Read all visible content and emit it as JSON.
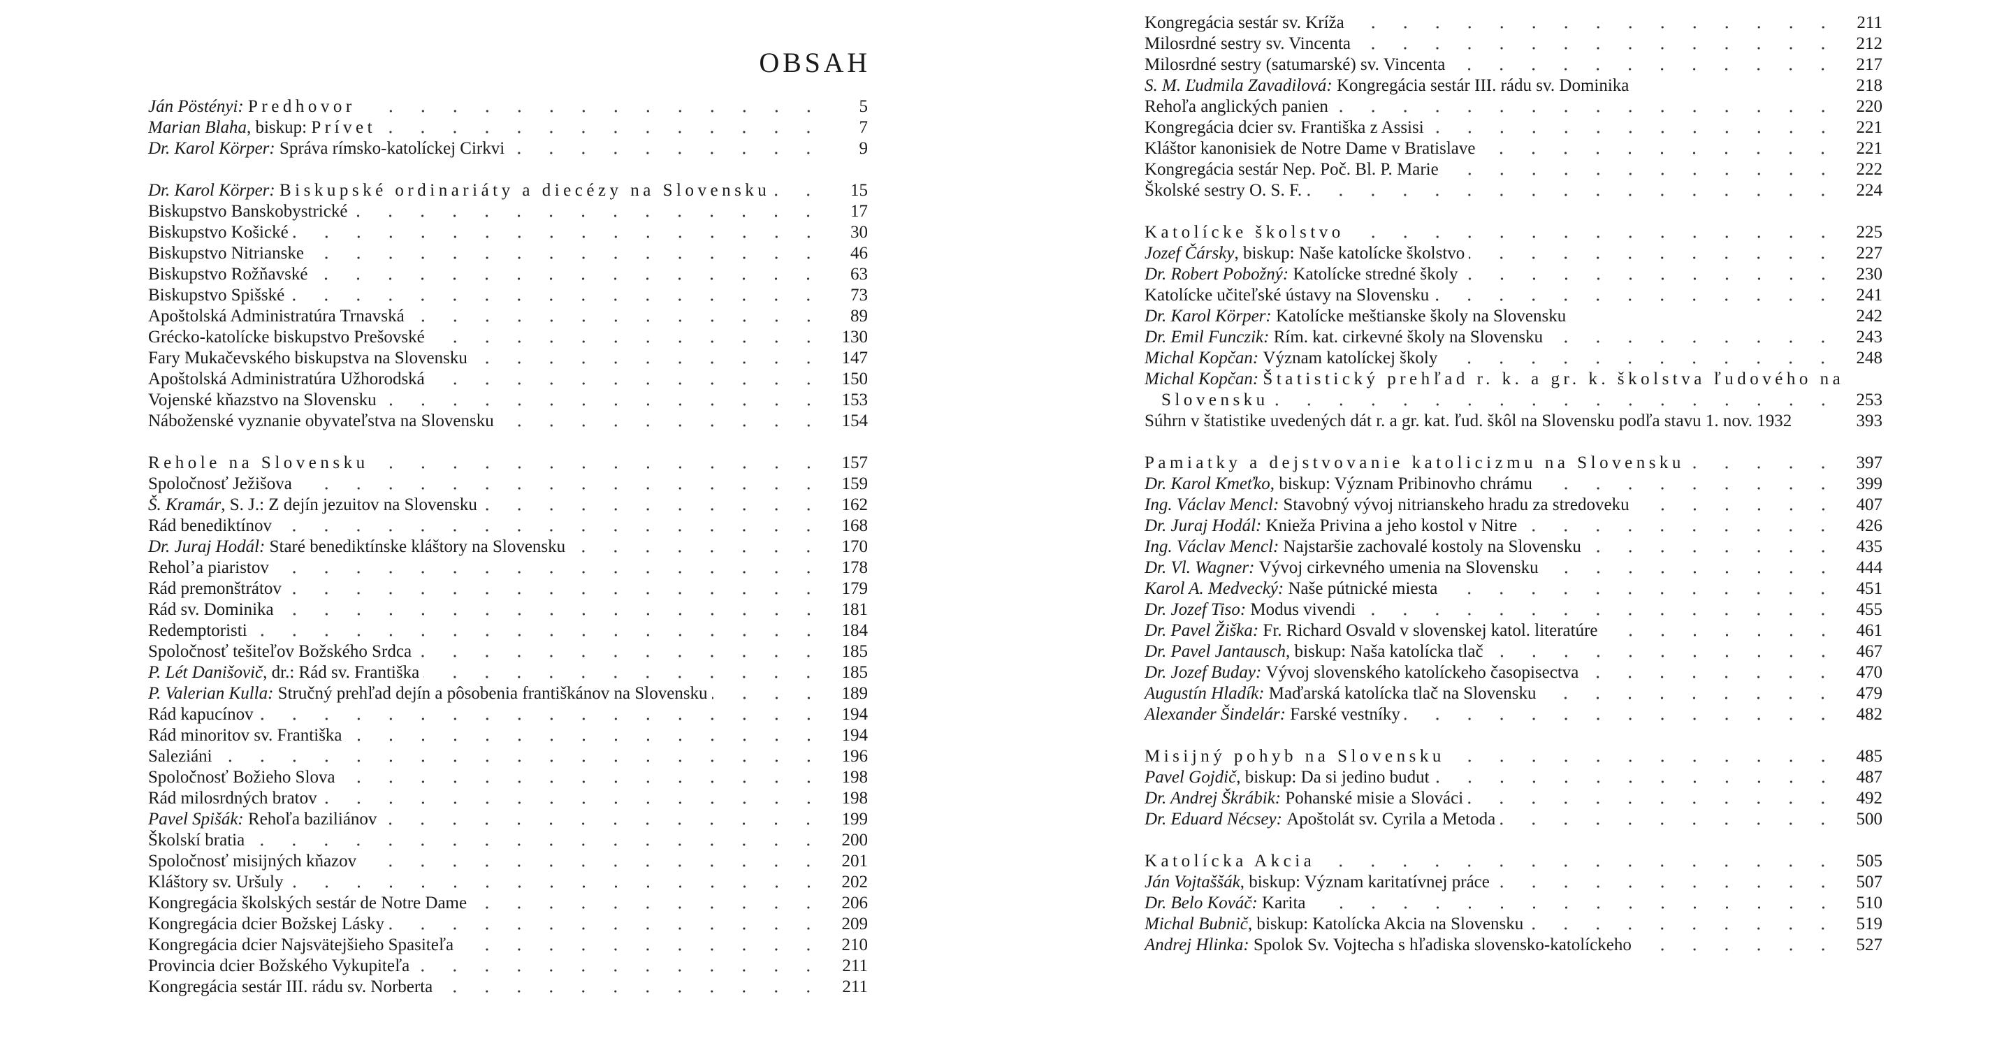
{
  "left_page": {
    "title": "OBSAH",
    "entries": [
      {
        "author": "Ján Pöstényi: ",
        "spaced": "Predhovor",
        "page": "5"
      },
      {
        "author": "Marian Blaha",
        "text": ", biskup: ",
        "spaced": "Prívet",
        "page": "7"
      },
      {
        "author": "Dr. Karol Körper: ",
        "text": "Správa rímsko-katolíckej Cirkvi",
        "page": "9"
      },
      {
        "gap": true
      },
      {
        "author": "Dr. Karol Körper: ",
        "spaced": "Biskupské ordinariáty a diecézy na Slovensku",
        "page": "15"
      },
      {
        "text": "Biskupstvo Banskobystrické",
        "page": "17"
      },
      {
        "text": "Biskupstvo Košické",
        "page": "30"
      },
      {
        "text": "Biskupstvo Nitrianske",
        "page": "46"
      },
      {
        "text": "Biskupstvo Rožňavské",
        "page": "63"
      },
      {
        "text": "Biskupstvo Spišské",
        "page": "73"
      },
      {
        "text": "Apoštolská Administratúra Trnavská",
        "page": "89"
      },
      {
        "text": "Grécko-katolícke biskupstvo Prešovské",
        "page": "130"
      },
      {
        "text": "Fary Mukačevského biskupstva na Slovensku",
        "page": "147"
      },
      {
        "text": "Apoštolská Administratúra Užhorodská",
        "page": "150"
      },
      {
        "text": "Vojenské kňazstvo na Slovensku",
        "page": "153"
      },
      {
        "text": "Náboženské vyznanie obyvateľstva na Slovensku",
        "page": "154"
      },
      {
        "gap": true
      },
      {
        "spaced": "Rehole na Slovensku",
        "page": "157"
      },
      {
        "text": "Spoločnosť Ježišova",
        "page": "159"
      },
      {
        "author": "Š. Kramár",
        "text": ", S. J.: Z dejín jezuitov na Slovensku",
        "page": "162"
      },
      {
        "text": "Rád benediktínov",
        "page": "168"
      },
      {
        "author": "Dr. Juraj Hodál: ",
        "text": "Staré benediktínske kláštory na Slovensku",
        "page": "170"
      },
      {
        "text": "Reholʼa piaristov",
        "page": "178"
      },
      {
        "text": "Rád premonštrátov",
        "page": "179"
      },
      {
        "text": "Rád sv. Dominika",
        "page": "181"
      },
      {
        "text": "Redemptoristi",
        "page": "184"
      },
      {
        "text": "Spoločnosť tešiteľov Božského Srdca",
        "page": "185"
      },
      {
        "author": "P. Lét Danišovič",
        "text": ", dr.: Rád sv. Františka",
        "page": "185"
      },
      {
        "author": "P. Valerian Kulla: ",
        "text": "Stručný prehľad dejín a pôsobenia františkánov na Slovensku",
        "page": "189"
      },
      {
        "text": "Rád kapucínov",
        "page": "194"
      },
      {
        "text": "Rád minoritov sv. Františka",
        "page": "194"
      },
      {
        "text": "Saleziáni",
        "page": "196"
      },
      {
        "text": "Spoločnosť Božieho Slova",
        "page": "198"
      },
      {
        "text": "Rád milosrdných bratov",
        "page": "198"
      },
      {
        "author": "Pavel Spišák: ",
        "text": "Rehoľa baziliánov",
        "page": "199"
      },
      {
        "text": "Školskí bratia",
        "page": "200"
      },
      {
        "text": "Spoločnosť misijných kňazov",
        "page": "201"
      },
      {
        "text": "Kláštory sv. Uršuly",
        "page": "202"
      },
      {
        "text": "Kongregácia školských sestár de Notre Dame",
        "page": "206"
      },
      {
        "text": "Kongregácia dcier Božskej Lásky",
        "page": "209"
      },
      {
        "text": "Kongregácia dcier Najsvätejšieho Spasiteľa",
        "page": "210"
      },
      {
        "text": "Provincia dcier Božského Vykupiteľa",
        "page": "211"
      },
      {
        "text": "Kongregácia sestár III. rádu sv. Norberta",
        "page": "211"
      }
    ]
  },
  "right_page": {
    "entries": [
      {
        "text": "Kongregácia sestár sv. Kríža",
        "page": "211"
      },
      {
        "text": "Milosrdné sestry sv. Vincenta",
        "page": "212"
      },
      {
        "text": "Milosrdné sestry (satumarské) sv. Vincenta",
        "page": "217"
      },
      {
        "author": "S. M. Ľudmila Zavadilová: ",
        "text": "Kongregácia sestár III. rádu sv. Dominika",
        "page": "218",
        "noleader": true
      },
      {
        "text": "Rehoľa anglických panien",
        "page": "220"
      },
      {
        "text": "Kongregácia dcier sv. Františka z Assisi",
        "page": "221"
      },
      {
        "text": "Kláštor kanonisiek de Notre Dame v Bratislave",
        "page": "221"
      },
      {
        "text": "Kongregácia sestár Nep. Poč. Bl. P. Marie",
        "page": "222"
      },
      {
        "text": "Školské sestry O. S. F.",
        "page": "224"
      },
      {
        "gap": true
      },
      {
        "spaced": "Katolícke školstvo",
        "page": "225"
      },
      {
        "author": "Jozef Čársky",
        "text": ", biskup: Naše katolícke školstvo",
        "page": "227"
      },
      {
        "author": "Dr. Robert Pobožný: ",
        "text": "Katolícke stredné školy",
        "page": "230"
      },
      {
        "text": "Katolícke učiteľské ústavy na Slovensku",
        "page": "241"
      },
      {
        "author": "Dr. Karol Körper: ",
        "text": "Katolícke meštianske školy na Slovensku",
        "page": "242",
        "noleader": true
      },
      {
        "author": "Dr. Emil Funczik: ",
        "text": "Rím. kat. cirkevné školy na Slovensku",
        "page": "243"
      },
      {
        "author": "Michal Kopčan: ",
        "text": "Význam katolíckej školy",
        "page": "248"
      },
      {
        "author": "Michal Kopčan: ",
        "spaced": "Štatistický prehľad r. k. a gr. k. školstva ľudového na",
        "noleader": true
      },
      {
        "spaced": "Slovensku",
        "page": "253",
        "indent": true
      },
      {
        "text": "Súhrn v štatistike uvedených dát r. a gr. kat. ľud. škôl na Slovensku podľa stavu 1. nov. 1932",
        "page": "393",
        "noleader": true
      },
      {
        "gap": true
      },
      {
        "spaced": "Pamiatky a dejstvovanie katolicizmu na Slovensku",
        "page": "397"
      },
      {
        "author": "Dr. Karol Kmeťko",
        "text": ", biskup: Význam Pribinovho chrámu",
        "page": "399"
      },
      {
        "author": "Ing. Václav Mencl: ",
        "text": "Stavobný vývoj nitrianskeho hradu za stredoveku",
        "page": "407"
      },
      {
        "author": "Dr. Juraj Hodál: ",
        "text": "Knieža Privina a jeho kostol v Nitre",
        "page": "426"
      },
      {
        "author": "Ing. Václav Mencl: ",
        "text": "Najstaršie zachovalé kostoly na Slovensku",
        "page": "435"
      },
      {
        "author": "Dr. Vl. Wagner: ",
        "text": "Vývoj cirkevného umenia na Slovensku",
        "page": "444"
      },
      {
        "author": "Karol A. Medvecký: ",
        "text": "Naše pútnické miesta",
        "page": "451"
      },
      {
        "author": "Dr. Jozef Tiso: ",
        "text": "Modus vivendi",
        "page": "455"
      },
      {
        "author": "Dr. Pavel Žiška: ",
        "text": "Fr. Richard Osvald v slovenskej katol. literatúre",
        "page": "461"
      },
      {
        "author": "Dr. Pavel Jantausch",
        "text": ", biskup: Naša katolícka tlač",
        "page": "467"
      },
      {
        "author": "Dr. Jozef Buday: ",
        "text": "Vývoj slovenského katolíckeho časopisectva",
        "page": "470"
      },
      {
        "author": "Augustín Hladík: ",
        "text": "Maďarská katolícka tlač na Slovensku",
        "page": "479"
      },
      {
        "author": "Alexander Šindelár: ",
        "text": "Farské vestníky",
        "page": "482"
      },
      {
        "gap": true
      },
      {
        "spaced": "Misijný pohyb na Slovensku",
        "page": "485"
      },
      {
        "author": "Pavel Gojdič",
        "text": ", biskup: Da si jedino budut",
        "page": "487"
      },
      {
        "author": "Dr. Andrej Škrábik: ",
        "text": "Pohanské misie a Slováci",
        "page": "492"
      },
      {
        "author": "Dr. Eduard Nécsey: ",
        "text": "Apoštolát sv. Cyrila a Metoda",
        "page": "500"
      },
      {
        "gap": true
      },
      {
        "spaced": "Katolícka Akcia",
        "page": "505"
      },
      {
        "author": "Ján Vojtaššák",
        "text": ", biskup: Význam karitatívnej práce",
        "page": "507"
      },
      {
        "author": "Dr. Belo Kováč: ",
        "text": "Karita",
        "page": "510"
      },
      {
        "author": "Michal Bubnič",
        "text": ", biskup: Katolícka Akcia na Slovensku",
        "page": "519"
      },
      {
        "author": "Andrej Hlinka: ",
        "text": "Spolok Sv. Vojtecha s hľadiska slovensko-katolíckeho",
        "page": "527"
      }
    ]
  }
}
